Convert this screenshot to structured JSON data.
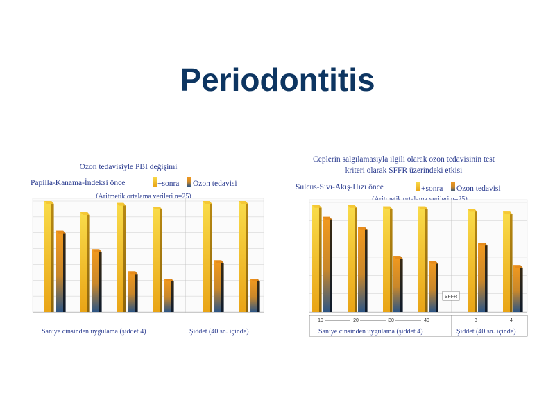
{
  "slide": {
    "title": "Periodontitis"
  },
  "colors": {
    "before_top": "#f7d33c",
    "before_bottom": "#e8a313",
    "after_top": "#f2921c",
    "after_bottom": "#2f5683",
    "title": "#0d3561",
    "text": "#2a3b8f"
  },
  "chart_data": [
    {
      "type": "bar",
      "title": "Ozon tedavisiyle PBI değişimi",
      "ylabel": "Papilla-Kanama-İndeksi önce",
      "legend": {
        "before": "+sonra",
        "after": "Ozon tedavisi",
        "placement": "top-right"
      },
      "subtitle": "(Aritmetik ortalama verileri n=25)",
      "ylim": [
        0,
        3.0
      ],
      "series": [
        {
          "values": [
            3.0,
            2.7,
            2.95,
            2.85,
            3.0,
            3.0
          ]
        },
        {
          "values": [
            2.2,
            1.7,
            1.1,
            0.9,
            1.4,
            0.9
          ]
        }
      ],
      "xfooter": [
        "Saniye cinsinden uygulama (şiddet 4)",
        "Şiddet (40 sn. içinde)"
      ],
      "grid": true
    },
    {
      "type": "bar",
      "title": "Ceplerin salgılamasıyla ilgili olarak ozon tedavisinin test kriteri olarak SFFR üzerindeki etkisi",
      "ylabel": "Sulcus-Sıvı-Akış-Hızı önce",
      "legend": {
        "before": "+sonra",
        "after": "Ozon tedavisi",
        "placement": "top-right"
      },
      "subtitle": "(Aritmetik ortalama verileri n=25)",
      "categories": [
        "10",
        "20",
        "30",
        "40",
        "3",
        "4"
      ],
      "ylim": [
        0,
        4.2
      ],
      "series": [
        {
          "values": [
            4.1,
            4.1,
            4.05,
            4.05,
            3.95,
            3.85
          ]
        },
        {
          "values": [
            3.65,
            3.25,
            2.15,
            1.95,
            2.65,
            1.8
          ]
        }
      ],
      "annotation": "SFFR",
      "xfooter": [
        "Saniye cinsinden uygulama (şiddet 4)",
        "Şiddet (40 sn. içinde)"
      ],
      "grid": true
    }
  ]
}
